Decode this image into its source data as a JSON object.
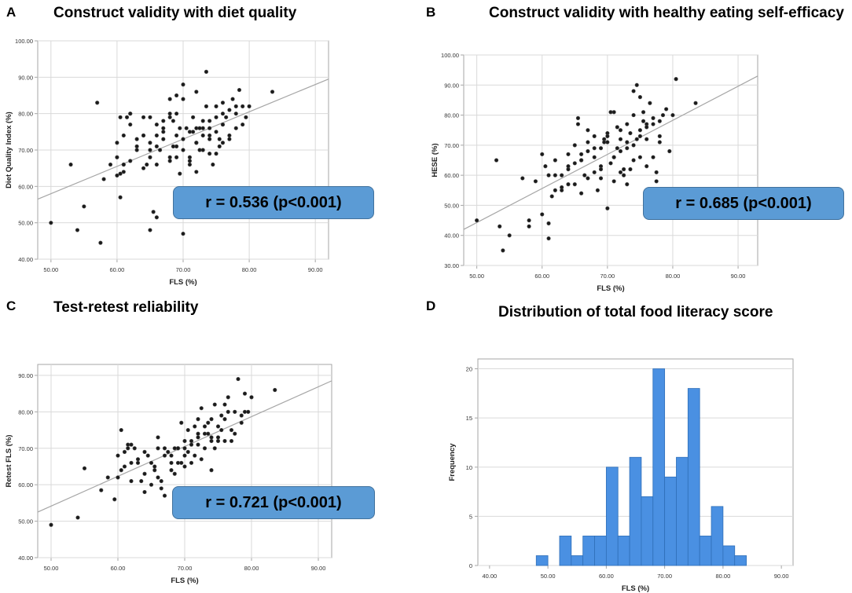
{
  "panels": [
    {
      "letter": "A",
      "chart_data": {
        "type": "scatter",
        "title": "Construct validity with diet quality",
        "xlabel": "FLS (%)",
        "ylabel": "Diet Quality Index (%)",
        "xlim": [
          48,
          92
        ],
        "ylim": [
          40,
          100
        ],
        "xticks": [
          "50.00",
          "60.00",
          "70.00",
          "80.00",
          "90.00"
        ],
        "yticks": [
          "40.00",
          "50.00",
          "60.00",
          "70.00",
          "80.00",
          "90.00",
          "100.00"
        ],
        "fit_line": {
          "x": [
            48,
            92
          ],
          "y": [
            56.5,
            89.5
          ]
        },
        "annotation": "r = 0.536 (p<0.001)",
        "x": [
          50.0,
          53.0,
          54.0,
          55.0,
          57.0,
          57.5,
          58.0,
          59.0,
          60.0,
          60.5,
          61.0,
          61.5,
          62.0,
          60.5,
          61.0,
          63.0,
          64.0,
          65.0,
          65.5,
          66.0,
          66.5,
          67.0,
          68.0,
          68.5,
          69.0,
          69.5,
          70.0,
          70.5,
          71.0,
          71.5,
          72.0,
          72.5,
          73.0,
          73.5,
          74.0,
          74.5,
          75.0,
          75.5,
          76.0,
          76.5,
          77.0,
          77.5,
          78.0,
          78.5,
          79.0,
          79.5,
          80.0,
          83.5,
          60.0,
          61.0,
          62.0,
          63.0,
          64.0,
          65.0,
          66.0,
          67.0,
          68.0,
          69.0,
          70.0,
          71.0,
          72.0,
          73.0,
          74.0,
          75.0,
          76.0,
          77.0,
          61.0,
          64.0,
          66.0,
          68.0,
          70.0,
          72.0,
          74.0,
          76.0,
          78.0,
          62.0,
          65.0,
          67.0,
          69.0,
          71.0,
          73.0,
          75.0,
          77.0,
          79.0,
          63.0,
          66.0,
          68.0,
          70.0,
          72.0,
          74.0,
          76.0,
          65.0,
          67.0,
          69.0,
          71.0,
          73.0,
          75.0,
          60.0,
          62.0,
          64.0,
          66.0,
          68.0,
          70.0,
          72.0,
          74.0,
          76.0,
          78.0,
          69.5,
          71.5,
          73.5,
          75.5,
          60.5,
          64.5,
          68.5,
          72.5,
          65.0,
          69.0
        ],
        "y": [
          50.0,
          66.0,
          48.0,
          54.5,
          83.0,
          44.5,
          62.0,
          66.0,
          72.0,
          57.0,
          64.0,
          79.0,
          67.0,
          63.5,
          66.0,
          70.0,
          74.0,
          48.0,
          53.0,
          51.5,
          70.0,
          75.0,
          68.0,
          71.0,
          80.0,
          63.5,
          47.0,
          76.0,
          67.0,
          79.0,
          72.0,
          70.0,
          78.0,
          91.5,
          74.0,
          66.0,
          82.0,
          73.0,
          77.0,
          79.0,
          81.0,
          84.0,
          82.0,
          86.5,
          77.0,
          79.0,
          82.0,
          86.0,
          68.0,
          74.0,
          80.0,
          71.0,
          65.0,
          79.0,
          74.0,
          73.0,
          79.0,
          68.0,
          73.0,
          75.0,
          64.0,
          70.0,
          73.0,
          75.0,
          77.0,
          74.0,
          66.0,
          74.0,
          71.0,
          67.0,
          70.0,
          76.0,
          78.0,
          80.0,
          76.0,
          77.0,
          72.0,
          76.0,
          74.0,
          68.0,
          76.0,
          79.0,
          73.0,
          82.0,
          73.0,
          66.0,
          80.0,
          84.0,
          72.0,
          69.0,
          83.0,
          68.0,
          78.0,
          85.0,
          66.0,
          74.0,
          69.0,
          63.0,
          80.0,
          79.0,
          77.0,
          84.0,
          88.0,
          86.0,
          76.0,
          72.0,
          80.0,
          76.0,
          75.0,
          82.0,
          71.0,
          79.0,
          66.0,
          78.0,
          76.0,
          70.0,
          71.0
        ],
        "show_grid": true
      }
    },
    {
      "letter": "B",
      "chart_data": {
        "type": "scatter",
        "title": "Construct validity with healthy eating self-efficacy",
        "xlabel": "FLS (%)",
        "ylabel": "HESE (%)",
        "xlim": [
          48,
          93
        ],
        "ylim": [
          30,
          100
        ],
        "xticks": [
          "50.00",
          "60.00",
          "70.00",
          "80.00",
          "90.00"
        ],
        "yticks": [
          "30.00",
          "40.00",
          "50.00",
          "60.00",
          "70.00",
          "80.00",
          "90.00",
          "100.00"
        ],
        "fit_line": {
          "x": [
            48,
            93
          ],
          "y": [
            42.0,
            93.0
          ]
        },
        "annotation": "r = 0.685 (p<0.001)",
        "x": [
          50.0,
          53.0,
          53.5,
          54.0,
          55.0,
          57.0,
          58.0,
          58.0,
          59.0,
          60.0,
          60.5,
          61.0,
          61.0,
          61.5,
          62.0,
          63.0,
          64.0,
          65.0,
          65.5,
          66.0,
          66.5,
          67.0,
          68.0,
          68.5,
          69.0,
          69.5,
          70.0,
          70.5,
          71.0,
          71.5,
          72.0,
          72.5,
          73.0,
          73.5,
          74.0,
          74.5,
          75.0,
          75.5,
          76.0,
          76.5,
          77.0,
          77.5,
          78.0,
          78.5,
          79.0,
          79.5,
          80.0,
          80.5,
          83.5,
          60.0,
          61.0,
          62.0,
          63.0,
          64.0,
          65.0,
          66.0,
          67.0,
          68.0,
          69.0,
          70.0,
          71.0,
          72.0,
          73.0,
          74.0,
          75.0,
          76.0,
          77.0,
          78.0,
          62.0,
          64.0,
          66.0,
          68.0,
          70.0,
          72.0,
          74.0,
          76.0,
          78.0,
          63.0,
          65.0,
          67.0,
          69.0,
          71.0,
          73.0,
          75.0,
          77.0,
          64.0,
          66.0,
          68.0,
          70.0,
          72.0,
          74.0,
          76.0,
          67.0,
          69.0,
          71.0,
          73.0,
          75.0,
          69.5,
          71.5,
          73.5,
          75.5,
          77.5,
          65.5,
          70.5,
          72.5,
          74.5
        ],
        "y": [
          45.0,
          65.0,
          43.0,
          35.0,
          40.0,
          59.0,
          45.0,
          43.0,
          58.0,
          47.0,
          63.0,
          44.0,
          39.0,
          53.0,
          60.0,
          55.0,
          67.0,
          57.0,
          79.0,
          54.0,
          60.0,
          59.0,
          66.0,
          55.0,
          63.0,
          72.0,
          49.0,
          81.0,
          58.0,
          76.0,
          68.0,
          60.0,
          57.0,
          62.0,
          70.0,
          90.0,
          75.0,
          81.0,
          77.0,
          84.0,
          66.0,
          58.0,
          78.0,
          80.0,
          82.0,
          68.0,
          80.0,
          92.0,
          84.0,
          67.0,
          60.0,
          65.0,
          56.0,
          62.0,
          70.0,
          65.0,
          71.0,
          73.0,
          69.0,
          74.0,
          66.0,
          72.0,
          77.0,
          80.0,
          73.0,
          63.0,
          77.0,
          71.0,
          55.0,
          63.0,
          67.0,
          61.0,
          71.0,
          75.0,
          88.0,
          76.0,
          73.0,
          60.0,
          64.0,
          68.0,
          59.0,
          66.0,
          69.0,
          86.0,
          79.0,
          57.0,
          65.0,
          69.0,
          73.0,
          61.0,
          65.0,
          72.0,
          75.0,
          62.0,
          81.0,
          71.0,
          66.0,
          71.0,
          69.0,
          74.0,
          78.0,
          61.0,
          77.0,
          64.0,
          62.0,
          72.0
        ]
      }
    },
    {
      "letter": "C",
      "chart_data": {
        "type": "scatter",
        "title": "Test-retest reliability",
        "xlabel": "FLS (%)",
        "ylabel": "Retest FLS (%)",
        "xlim": [
          48,
          92
        ],
        "ylim": [
          40,
          93
        ],
        "xticks": [
          "50.00",
          "60.00",
          "70.00",
          "80.00",
          "90.00"
        ],
        "yticks": [
          "40.00",
          "50.00",
          "60.00",
          "70.00",
          "80.00",
          "90.00"
        ],
        "fit_line": {
          "x": [
            48,
            92
          ],
          "y": [
            52.5,
            88.5
          ]
        },
        "annotation": "r = 0.721 (p<0.001)",
        "x": [
          50.0,
          54.0,
          55.0,
          57.5,
          58.5,
          59.5,
          60.0,
          60.5,
          61.0,
          61.5,
          62.0,
          63.0,
          64.0,
          65.0,
          65.5,
          66.0,
          66.5,
          67.0,
          68.0,
          68.5,
          69.0,
          69.5,
          70.0,
          70.5,
          71.0,
          71.5,
          72.0,
          72.5,
          73.0,
          73.5,
          74.0,
          74.5,
          75.0,
          75.5,
          76.0,
          76.5,
          77.0,
          77.5,
          78.0,
          78.5,
          79.0,
          79.5,
          80.0,
          83.5,
          60.0,
          61.0,
          62.0,
          63.0,
          64.0,
          65.0,
          66.0,
          67.0,
          68.0,
          69.0,
          70.0,
          71.0,
          72.0,
          73.0,
          74.0,
          75.0,
          76.0,
          62.5,
          64.5,
          66.5,
          68.5,
          70.5,
          72.5,
          74.5,
          76.5,
          78.5,
          63.5,
          65.5,
          67.5,
          69.5,
          71.5,
          73.5,
          75.5,
          77.5,
          61.5,
          64.0,
          66.0,
          68.0,
          70.0,
          72.0,
          74.0,
          76.0,
          69.0,
          71.0,
          73.0,
          75.0,
          77.0,
          79.0,
          67.0,
          70.0,
          72.0,
          74.0,
          60.5,
          62.0
        ],
        "y": [
          49.0,
          51.0,
          64.5,
          58.5,
          62.0,
          56.0,
          68.0,
          75.0,
          65.0,
          70.0,
          61.0,
          66.0,
          58.0,
          60.0,
          64.0,
          73.0,
          59.0,
          57.0,
          66.0,
          63.0,
          70.0,
          77.0,
          72.0,
          69.0,
          66.0,
          76.0,
          73.0,
          81.0,
          70.0,
          74.0,
          64.0,
          82.0,
          76.0,
          79.0,
          72.0,
          84.0,
          75.0,
          80.0,
          89.0,
          79.0,
          85.0,
          80.0,
          84.0,
          86.0,
          62.0,
          69.0,
          66.0,
          67.0,
          63.0,
          66.0,
          70.0,
          68.0,
          68.0,
          66.0,
          65.0,
          72.0,
          71.0,
          74.0,
          73.0,
          73.0,
          78.0,
          70.0,
          68.0,
          61.0,
          70.0,
          75.0,
          67.0,
          70.0,
          80.0,
          77.0,
          61.0,
          65.0,
          69.0,
          66.0,
          68.0,
          77.0,
          75.0,
          74.0,
          71.0,
          69.0,
          62.0,
          64.0,
          70.0,
          78.0,
          72.0,
          82.0,
          70.0,
          71.0,
          76.0,
          72.0,
          72.0,
          80.0,
          70.0,
          68.0,
          74.0,
          78.0,
          64.0,
          71.0
        ]
      }
    },
    {
      "letter": "D",
      "chart_data": {
        "type": "bar",
        "title": "Distribution of total food literacy score",
        "xlabel": "FLS (%)",
        "ylabel": "Frequency",
        "xlim": [
          38,
          92
        ],
        "ylim": [
          0,
          21
        ],
        "xticks": [
          "40.00",
          "50.00",
          "60.00",
          "70.00",
          "80.00",
          "90.00"
        ],
        "yticks": [
          "0",
          "5",
          "10",
          "15",
          "20"
        ],
        "bin_width": 2,
        "bin_starts": [
          48,
          50,
          52,
          54,
          56,
          58,
          60,
          62,
          64,
          66,
          68,
          70,
          72,
          74,
          76,
          78,
          80,
          82
        ],
        "values": [
          1,
          0,
          3,
          1,
          3,
          3,
          10,
          3,
          11,
          7,
          20,
          9,
          11,
          18,
          3,
          6,
          2,
          1
        ]
      }
    }
  ],
  "colors": {
    "point": "#1a1a1a",
    "fit": "#a6a6a6",
    "grid": "#d9d9d9",
    "axis": "#a6a6a6",
    "bar": "#4a90e2",
    "bar_edge": "#2f6fb8",
    "badge": "#5b9bd5"
  }
}
